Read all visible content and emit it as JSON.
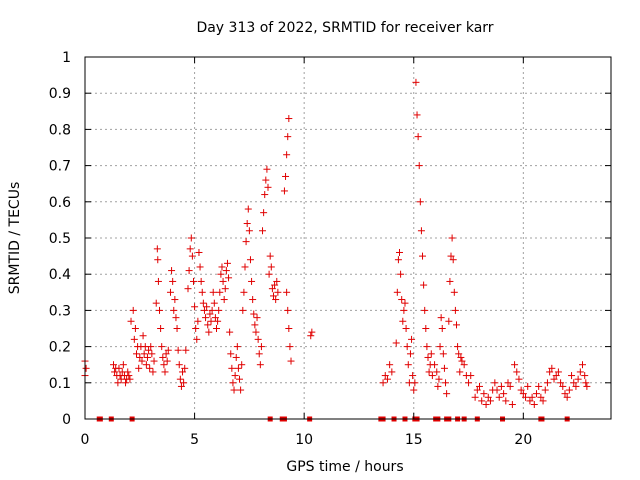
{
  "chart_data": {
    "type": "scatter",
    "title": "Day 313 of 2022, SRMTID for receiver karr",
    "xlabel": "GPS time / hours",
    "ylabel": "SRMTID / TECUs",
    "xlim": [
      0,
      24
    ],
    "ylim": [
      0,
      1
    ],
    "xticks": [
      0,
      5,
      10,
      15,
      20
    ],
    "yticks": [
      0,
      0.1,
      0.2,
      0.3,
      0.4,
      0.5,
      0.6,
      0.7,
      0.8,
      0.9,
      1
    ],
    "ytick_labels": [
      "0",
      "0.1",
      "0.2",
      "0.3",
      "0.4",
      "0.5",
      "0.6",
      "0.7",
      "0.8",
      "0.9",
      "1"
    ],
    "grid": true,
    "marker": "plus",
    "color": "#e00000",
    "series": [
      {
        "name": "SRMTID",
        "points": [
          [
            0.0,
            0.16
          ],
          [
            0.0,
            0.12
          ],
          [
            0.05,
            0.14
          ],
          [
            1.3,
            0.15
          ],
          [
            1.35,
            0.13
          ],
          [
            1.4,
            0.14
          ],
          [
            1.45,
            0.12
          ],
          [
            1.5,
            0.1
          ],
          [
            1.55,
            0.14
          ],
          [
            1.6,
            0.12
          ],
          [
            1.65,
            0.11
          ],
          [
            1.7,
            0.13
          ],
          [
            1.75,
            0.15
          ],
          [
            1.8,
            0.12
          ],
          [
            1.85,
            0.1
          ],
          [
            1.9,
            0.11
          ],
          [
            1.95,
            0.13
          ],
          [
            2.0,
            0.12
          ],
          [
            2.05,
            0.11
          ],
          [
            2.1,
            0.27
          ],
          [
            2.2,
            0.3
          ],
          [
            2.25,
            0.22
          ],
          [
            2.3,
            0.25
          ],
          [
            2.35,
            0.18
          ],
          [
            2.4,
            0.2
          ],
          [
            2.45,
            0.14
          ],
          [
            2.5,
            0.17
          ],
          [
            2.55,
            0.2
          ],
          [
            2.6,
            0.16
          ],
          [
            2.65,
            0.23
          ],
          [
            2.7,
            0.18
          ],
          [
            2.75,
            0.2
          ],
          [
            2.8,
            0.15
          ],
          [
            2.85,
            0.17
          ],
          [
            2.9,
            0.19
          ],
          [
            2.95,
            0.14
          ],
          [
            3.0,
            0.2
          ],
          [
            3.05,
            0.18
          ],
          [
            3.1,
            0.13
          ],
          [
            3.15,
            0.16
          ],
          [
            3.25,
            0.32
          ],
          [
            3.3,
            0.47
          ],
          [
            3.32,
            0.44
          ],
          [
            3.35,
            0.38
          ],
          [
            3.4,
            0.3
          ],
          [
            3.45,
            0.25
          ],
          [
            3.5,
            0.2
          ],
          [
            3.55,
            0.17
          ],
          [
            3.6,
            0.15
          ],
          [
            3.65,
            0.13
          ],
          [
            3.7,
            0.18
          ],
          [
            3.75,
            0.16
          ],
          [
            3.8,
            0.19
          ],
          [
            3.9,
            0.35
          ],
          [
            3.95,
            0.41
          ],
          [
            4.0,
            0.38
          ],
          [
            4.05,
            0.3
          ],
          [
            4.1,
            0.33
          ],
          [
            4.15,
            0.28
          ],
          [
            4.2,
            0.25
          ],
          [
            4.25,
            0.19
          ],
          [
            4.3,
            0.15
          ],
          [
            4.35,
            0.11
          ],
          [
            4.4,
            0.09
          ],
          [
            4.45,
            0.13
          ],
          [
            4.5,
            0.1
          ],
          [
            4.55,
            0.14
          ],
          [
            4.6,
            0.19
          ],
          [
            4.7,
            0.36
          ],
          [
            4.75,
            0.41
          ],
          [
            4.8,
            0.47
          ],
          [
            4.85,
            0.5
          ],
          [
            4.9,
            0.45
          ],
          [
            4.95,
            0.38
          ],
          [
            5.0,
            0.31
          ],
          [
            5.05,
            0.25
          ],
          [
            5.1,
            0.22
          ],
          [
            5.15,
            0.27
          ],
          [
            5.2,
            0.46
          ],
          [
            5.25,
            0.42
          ],
          [
            5.3,
            0.38
          ],
          [
            5.35,
            0.35
          ],
          [
            5.4,
            0.32
          ],
          [
            5.45,
            0.3
          ],
          [
            5.5,
            0.28
          ],
          [
            5.55,
            0.31
          ],
          [
            5.6,
            0.26
          ],
          [
            5.65,
            0.24
          ],
          [
            5.7,
            0.29
          ],
          [
            5.75,
            0.27
          ],
          [
            5.8,
            0.3
          ],
          [
            5.85,
            0.35
          ],
          [
            5.9,
            0.32
          ],
          [
            5.95,
            0.28
          ],
          [
            6.0,
            0.25
          ],
          [
            6.05,
            0.27
          ],
          [
            6.1,
            0.3
          ],
          [
            6.15,
            0.35
          ],
          [
            6.2,
            0.4
          ],
          [
            6.25,
            0.42
          ],
          [
            6.3,
            0.38
          ],
          [
            6.35,
            0.33
          ],
          [
            6.4,
            0.36
          ],
          [
            6.45,
            0.41
          ],
          [
            6.5,
            0.43
          ],
          [
            6.55,
            0.39
          ],
          [
            6.6,
            0.24
          ],
          [
            6.65,
            0.18
          ],
          [
            6.7,
            0.14
          ],
          [
            6.75,
            0.1
          ],
          [
            6.8,
            0.08
          ],
          [
            6.85,
            0.12
          ],
          [
            6.9,
            0.17
          ],
          [
            6.95,
            0.2
          ],
          [
            7.0,
            0.14
          ],
          [
            7.05,
            0.11
          ],
          [
            7.1,
            0.08
          ],
          [
            7.15,
            0.15
          ],
          [
            7.2,
            0.3
          ],
          [
            7.25,
            0.35
          ],
          [
            7.3,
            0.42
          ],
          [
            7.35,
            0.49
          ],
          [
            7.4,
            0.54
          ],
          [
            7.45,
            0.58
          ],
          [
            7.5,
            0.52
          ],
          [
            7.55,
            0.44
          ],
          [
            7.6,
            0.38
          ],
          [
            7.65,
            0.33
          ],
          [
            7.7,
            0.29
          ],
          [
            7.75,
            0.26
          ],
          [
            7.8,
            0.24
          ],
          [
            7.85,
            0.28
          ],
          [
            7.9,
            0.22
          ],
          [
            7.95,
            0.18
          ],
          [
            8.0,
            0.15
          ],
          [
            8.05,
            0.2
          ],
          [
            8.1,
            0.52
          ],
          [
            8.15,
            0.57
          ],
          [
            8.2,
            0.62
          ],
          [
            8.25,
            0.66
          ],
          [
            8.3,
            0.69
          ],
          [
            8.35,
            0.64
          ],
          [
            8.4,
            0.4
          ],
          [
            8.45,
            0.45
          ],
          [
            8.5,
            0.42
          ],
          [
            8.55,
            0.36
          ],
          [
            8.6,
            0.34
          ],
          [
            8.65,
            0.37
          ],
          [
            8.7,
            0.33
          ],
          [
            8.75,
            0.38
          ],
          [
            8.8,
            0.35
          ],
          [
            9.1,
            0.63
          ],
          [
            9.15,
            0.67
          ],
          [
            9.2,
            0.73
          ],
          [
            9.25,
            0.78
          ],
          [
            9.3,
            0.83
          ],
          [
            9.2,
            0.35
          ],
          [
            9.25,
            0.3
          ],
          [
            9.3,
            0.25
          ],
          [
            9.35,
            0.2
          ],
          [
            9.4,
            0.16
          ],
          [
            10.3,
            0.23
          ],
          [
            10.35,
            0.24
          ],
          [
            13.6,
            0.1
          ],
          [
            13.7,
            0.12
          ],
          [
            13.8,
            0.11
          ],
          [
            13.9,
            0.15
          ],
          [
            14.0,
            0.13
          ],
          [
            14.2,
            0.21
          ],
          [
            14.25,
            0.35
          ],
          [
            14.3,
            0.44
          ],
          [
            14.35,
            0.46
          ],
          [
            14.4,
            0.4
          ],
          [
            14.45,
            0.33
          ],
          [
            14.5,
            0.27
          ],
          [
            14.55,
            0.3
          ],
          [
            14.6,
            0.32
          ],
          [
            14.65,
            0.25
          ],
          [
            14.7,
            0.2
          ],
          [
            14.75,
            0.15
          ],
          [
            14.8,
            0.1
          ],
          [
            14.85,
            0.18
          ],
          [
            14.9,
            0.22
          ],
          [
            14.95,
            0.12
          ],
          [
            15.0,
            0.08
          ],
          [
            15.05,
            0.1
          ],
          [
            15.1,
            0.93
          ],
          [
            15.15,
            0.84
          ],
          [
            15.2,
            0.78
          ],
          [
            15.25,
            0.7
          ],
          [
            15.3,
            0.6
          ],
          [
            15.35,
            0.52
          ],
          [
            15.4,
            0.45
          ],
          [
            15.45,
            0.37
          ],
          [
            15.5,
            0.3
          ],
          [
            15.55,
            0.25
          ],
          [
            15.6,
            0.2
          ],
          [
            15.65,
            0.17
          ],
          [
            15.7,
            0.13
          ],
          [
            15.75,
            0.15
          ],
          [
            15.8,
            0.18
          ],
          [
            15.85,
            0.12
          ],
          [
            15.95,
            0.15
          ],
          [
            16.05,
            0.13
          ],
          [
            16.1,
            0.09
          ],
          [
            16.15,
            0.11
          ],
          [
            16.2,
            0.2
          ],
          [
            16.25,
            0.28
          ],
          [
            16.3,
            0.25
          ],
          [
            16.35,
            0.18
          ],
          [
            16.4,
            0.14
          ],
          [
            16.45,
            0.1
          ],
          [
            16.5,
            0.07
          ],
          [
            16.6,
            0.27
          ],
          [
            16.65,
            0.38
          ],
          [
            16.7,
            0.45
          ],
          [
            16.75,
            0.5
          ],
          [
            16.8,
            0.44
          ],
          [
            16.85,
            0.35
          ],
          [
            16.9,
            0.3
          ],
          [
            16.95,
            0.26
          ],
          [
            17.0,
            0.2
          ],
          [
            17.05,
            0.18
          ],
          [
            17.1,
            0.13
          ],
          [
            17.15,
            0.17
          ],
          [
            17.2,
            0.16
          ],
          [
            17.3,
            0.15
          ],
          [
            17.4,
            0.12
          ],
          [
            17.5,
            0.1
          ],
          [
            17.6,
            0.12
          ],
          [
            17.8,
            0.06
          ],
          [
            17.9,
            0.08
          ],
          [
            18.0,
            0.09
          ],
          [
            18.1,
            0.05
          ],
          [
            18.2,
            0.07
          ],
          [
            18.3,
            0.04
          ],
          [
            18.4,
            0.06
          ],
          [
            18.5,
            0.05
          ],
          [
            18.6,
            0.08
          ],
          [
            18.7,
            0.1
          ],
          [
            18.8,
            0.08
          ],
          [
            18.9,
            0.06
          ],
          [
            19.0,
            0.09
          ],
          [
            19.1,
            0.07
          ],
          [
            19.2,
            0.05
          ],
          [
            19.3,
            0.1
          ],
          [
            19.4,
            0.09
          ],
          [
            19.5,
            0.04
          ],
          [
            19.6,
            0.15
          ],
          [
            19.7,
            0.13
          ],
          [
            19.8,
            0.11
          ],
          [
            19.9,
            0.08
          ],
          [
            20.0,
            0.07
          ],
          [
            20.1,
            0.06
          ],
          [
            20.2,
            0.09
          ],
          [
            20.3,
            0.05
          ],
          [
            20.4,
            0.06
          ],
          [
            20.5,
            0.04
          ],
          [
            20.6,
            0.07
          ],
          [
            20.7,
            0.09
          ],
          [
            20.8,
            0.06
          ],
          [
            20.9,
            0.05
          ],
          [
            21.0,
            0.08
          ],
          [
            21.1,
            0.1
          ],
          [
            21.2,
            0.13
          ],
          [
            21.3,
            0.14
          ],
          [
            21.4,
            0.11
          ],
          [
            21.5,
            0.12
          ],
          [
            21.6,
            0.13
          ],
          [
            21.7,
            0.1
          ],
          [
            21.8,
            0.09
          ],
          [
            21.9,
            0.07
          ],
          [
            22.0,
            0.06
          ],
          [
            22.1,
            0.08
          ],
          [
            22.2,
            0.12
          ],
          [
            22.3,
            0.1
          ],
          [
            22.4,
            0.09
          ],
          [
            22.5,
            0.11
          ],
          [
            22.6,
            0.13
          ],
          [
            22.7,
            0.15
          ],
          [
            22.8,
            0.12
          ],
          [
            22.85,
            0.1
          ],
          [
            22.9,
            0.09
          ]
        ]
      }
    ],
    "zero_markers": [
      0.65,
      0.7,
      1.2,
      2.15,
      8.45,
      9.0,
      9.1,
      10.25,
      13.5,
      13.6,
      14.1,
      14.6,
      15.05,
      15.15,
      16.0,
      16.1,
      16.5,
      16.6,
      17.0,
      17.3,
      17.9,
      19.05,
      20.8,
      20.85,
      22.0
    ]
  }
}
